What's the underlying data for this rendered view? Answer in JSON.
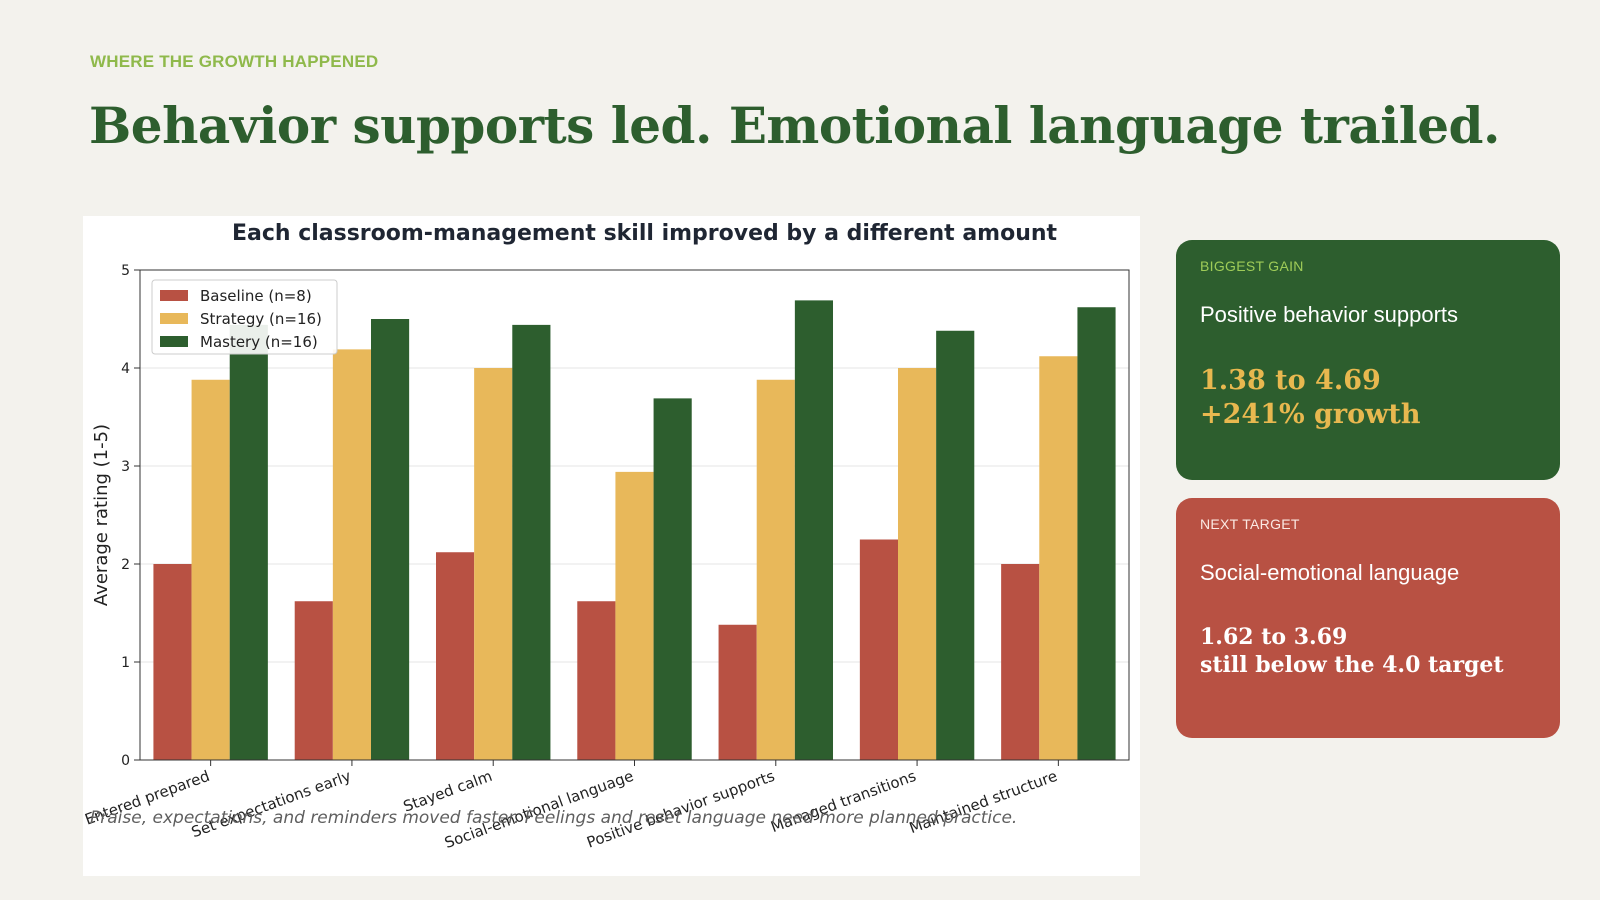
{
  "slide": {
    "eyebrow": "WHERE THE GROWTH HAPPENED",
    "headline": "Behavior supports led. Emotional language trailed.",
    "footnote": "Praise, expectations, and reminders moved faster. Feelings and reset language need more planned practice."
  },
  "cards": {
    "gain": {
      "tag": "BIGGEST GAIN",
      "name": "Positive behavior supports",
      "line1": "1.38 to 4.69",
      "line2": "+241% growth"
    },
    "target": {
      "tag": "NEXT TARGET",
      "name": "Social-emotional language",
      "line1": "1.62 to 3.69",
      "line2": "still below the 4.0 target"
    }
  },
  "colors": {
    "baseline": "#b85143",
    "strategy": "#e8b85a",
    "mastery": "#2d5e2e",
    "headline": "#2d5e2e",
    "eyebrow": "#8fb94b",
    "background": "#f3f2ed"
  },
  "chart_data": {
    "type": "bar",
    "title": "Each classroom-management skill improved by a different amount",
    "xlabel": "",
    "ylabel": "Average rating (1-5)",
    "ylim": [
      0,
      5
    ],
    "yticks": [
      0,
      1,
      2,
      3,
      4,
      5
    ],
    "grid": "horizontal",
    "legend_position": "top-left",
    "categories": [
      "Entered prepared",
      "Set expectations early",
      "Stayed calm",
      "Social-emotional language",
      "Positive behavior supports",
      "Managed transitions",
      "Maintained structure"
    ],
    "series": [
      {
        "name": "Baseline (n=8)",
        "color": "#b85143",
        "values": [
          2.0,
          1.62,
          2.12,
          1.62,
          1.38,
          2.25,
          2.0
        ]
      },
      {
        "name": "Strategy (n=16)",
        "color": "#e8b85a",
        "values": [
          3.88,
          4.19,
          4.0,
          2.94,
          3.88,
          4.0,
          4.12
        ]
      },
      {
        "name": "Mastery (n=16)",
        "color": "#2d5e2e",
        "values": [
          4.44,
          4.5,
          4.44,
          3.69,
          4.69,
          4.38,
          4.62
        ]
      }
    ]
  }
}
